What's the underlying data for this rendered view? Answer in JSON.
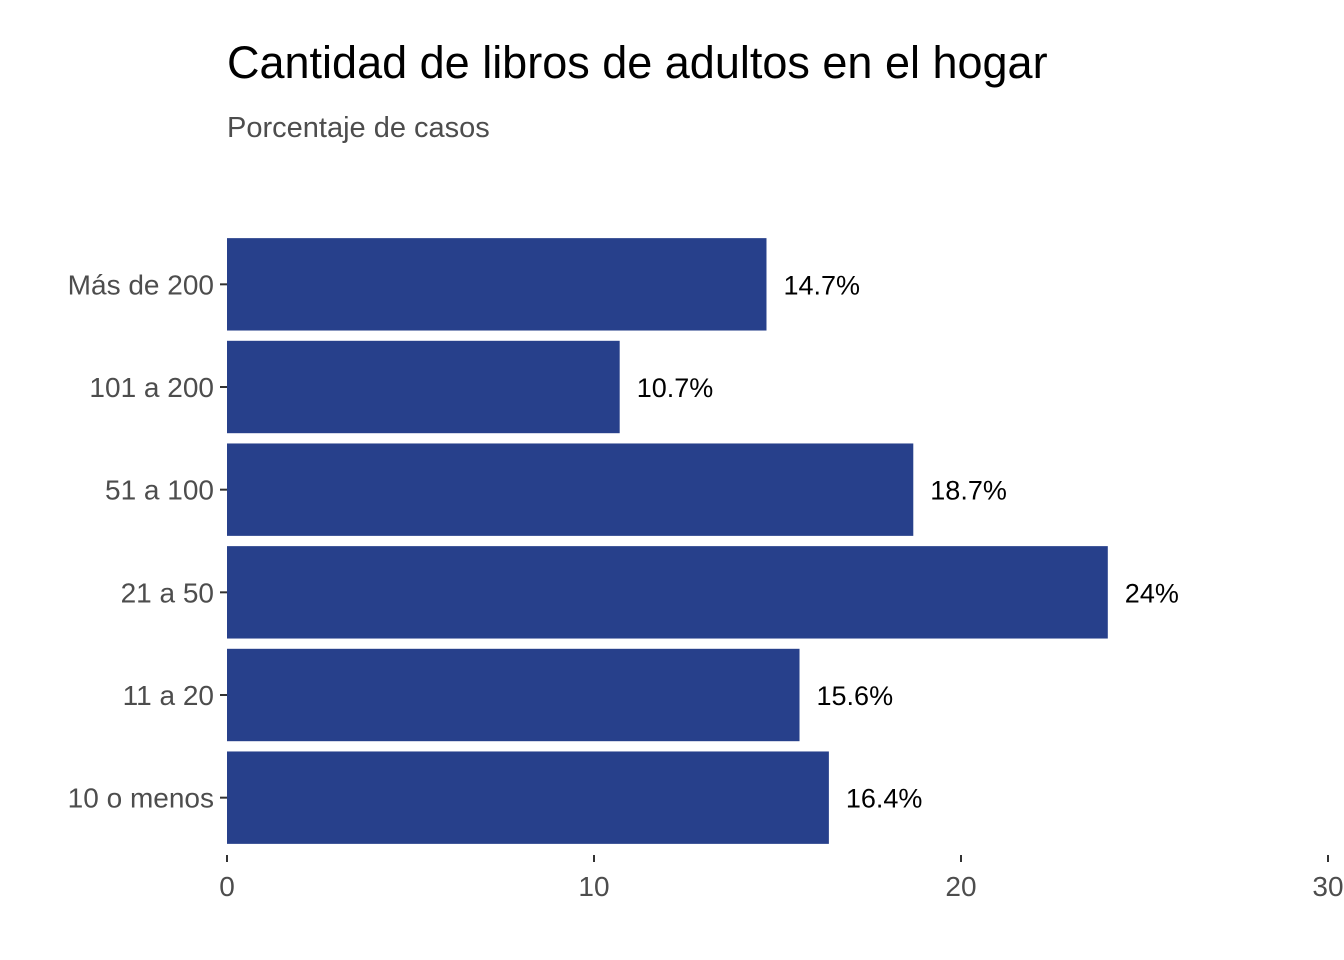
{
  "chart_data": {
    "type": "bar",
    "orientation": "horizontal",
    "title": "Cantidad de libros de adultos en el hogar",
    "subtitle": "Porcentaje de casos",
    "categories": [
      "Más de 200",
      "101 a 200",
      "51 a 100",
      "21 a 50",
      "11 a 20",
      "10 o menos"
    ],
    "values": [
      14.7,
      10.7,
      18.7,
      24,
      15.6,
      16.4
    ],
    "data_labels": [
      "14.7%",
      "10.7%",
      "18.7%",
      "24%",
      "15.6%",
      "16.4%"
    ],
    "xlim": [
      0,
      30
    ],
    "xticks": [
      0,
      10,
      20,
      30
    ],
    "xtick_labels": [
      "0",
      "10",
      "20",
      "30"
    ],
    "grid": false,
    "legend": "none",
    "bar_color": "#27408b"
  }
}
